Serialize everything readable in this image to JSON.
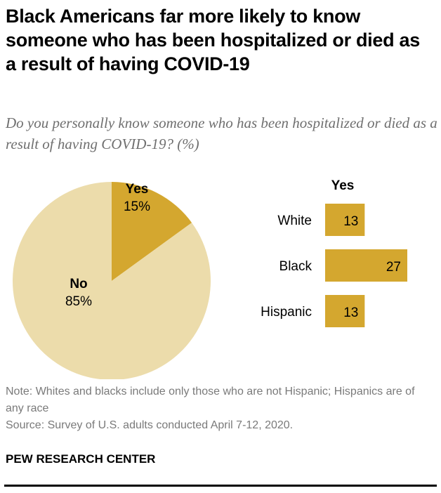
{
  "title": "Black Americans far more likely to know someone who has been hospitalized or died as a result of having COVID-19",
  "subtitle": "Do you personally know someone who has been hospitalized or died as a result of having COVID-19? (%)",
  "chart_data": [
    {
      "type": "pie",
      "slices": [
        {
          "label": "Yes",
          "value": 15,
          "value_label": "15%",
          "color": "#d4a72f"
        },
        {
          "label": "No",
          "value": 85,
          "value_label": "85%",
          "color": "#ecdcab"
        }
      ]
    },
    {
      "type": "bar",
      "orientation": "horizontal",
      "header": "Yes",
      "categories": [
        "White",
        "Black",
        "Hispanic"
      ],
      "values": [
        13,
        27,
        13
      ],
      "color": "#d4a72f"
    }
  ],
  "note": "Note: Whites and blacks include only those who are not Hispanic; Hispanics are of any race",
  "source": "Source: Survey of U.S. adults conducted April 7-12, 2020.",
  "brand": "PEW RESEARCH CENTER"
}
